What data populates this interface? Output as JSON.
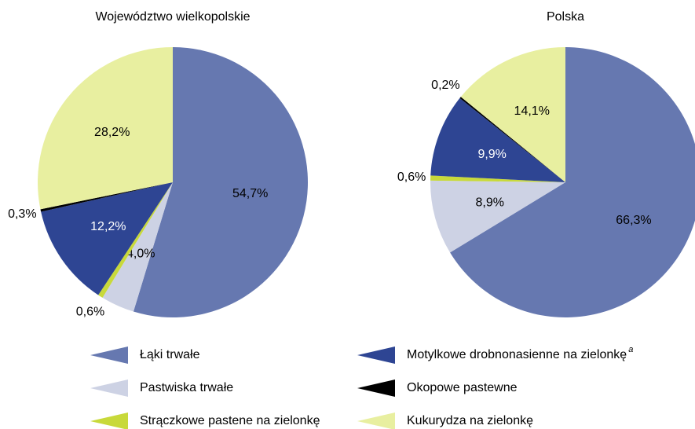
{
  "chart_data": [
    {
      "type": "pie",
      "title": "Województwo wielkopolskie",
      "categories": [
        "Łąki trwałe",
        "Pastwiska trwałe",
        "Strączkowe pastene na zielonkę",
        "Motylkowe drobnonasienne na zielonkę",
        "Okopowe pastewne",
        "Kukurydza na zielonkę"
      ],
      "values": [
        54.7,
        4.0,
        0.6,
        12.2,
        0.3,
        28.2
      ],
      "value_labels": [
        "54,7%",
        "4,0%",
        "0,6%",
        "12,2%",
        "0,3%",
        "28,2%"
      ],
      "colors": [
        "#6678b0",
        "#cdd2e4",
        "#c8d93a",
        "#2e4593",
        "#000000",
        "#e8efa0"
      ],
      "footnote_marker": "a"
    },
    {
      "type": "pie",
      "title": "Polska",
      "categories": [
        "Łąki trwałe",
        "Pastwiska trwałe",
        "Strączkowe pastene na zielonkę",
        "Motylkowe drobnonasienne na zielonkę",
        "Okopowe pastewne",
        "Kukurydza na zielonkę"
      ],
      "values": [
        66.3,
        8.9,
        0.6,
        9.9,
        0.2,
        14.1
      ],
      "value_labels": [
        "66,3%",
        "8,9%",
        "0,6%",
        "9,9%",
        "0,2%",
        "14,1%"
      ],
      "colors": [
        "#6678b0",
        "#cdd2e4",
        "#c8d93a",
        "#2e4593",
        "#000000",
        "#e8efa0"
      ]
    }
  ]
}
